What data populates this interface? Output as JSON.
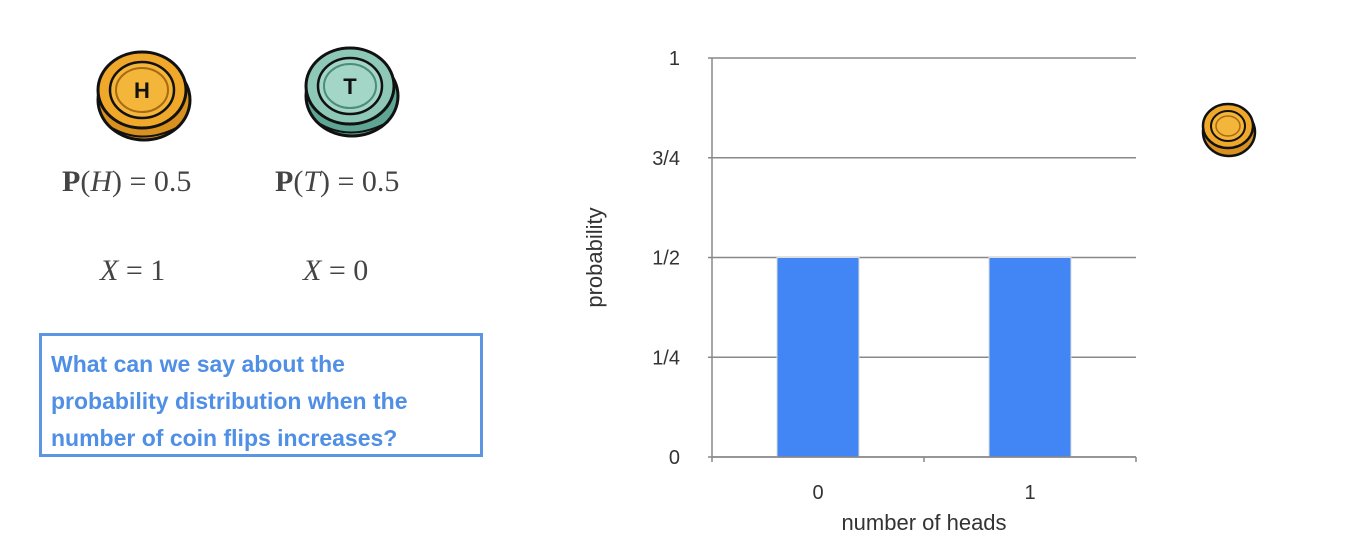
{
  "coins": {
    "heads_letter": "H",
    "tails_letter": "T",
    "heads_color": "#f0a82a",
    "tails_color": "#8ec9b8"
  },
  "probabilities": {
    "heads": {
      "prefix": "P",
      "var": "H",
      "rest": " = 0.5"
    },
    "tails": {
      "prefix": "P",
      "var": "T",
      "rest": " = 0.5"
    }
  },
  "random_variable": {
    "heads": {
      "var": "X",
      "rest": " = 1"
    },
    "tails": {
      "var": "X",
      "rest": " = 0"
    }
  },
  "question": {
    "line1": "What can we say about the",
    "line2": "probability distribution when the",
    "line3": "number of coin flips increases?",
    "color": "#4f8fe5"
  },
  "chart_data": {
    "type": "bar",
    "categories": [
      "0",
      "1"
    ],
    "values": [
      0.5,
      0.5
    ],
    "xlabel": "number of heads",
    "ylabel": "probability",
    "ylim": [
      0,
      1
    ],
    "yticks": [
      0,
      0.25,
      0.5,
      0.75,
      1
    ],
    "ytick_labels": [
      "0",
      "1/4",
      "1/2",
      "3/4",
      "1"
    ],
    "grid": true,
    "bar_color": "#4285f4"
  }
}
